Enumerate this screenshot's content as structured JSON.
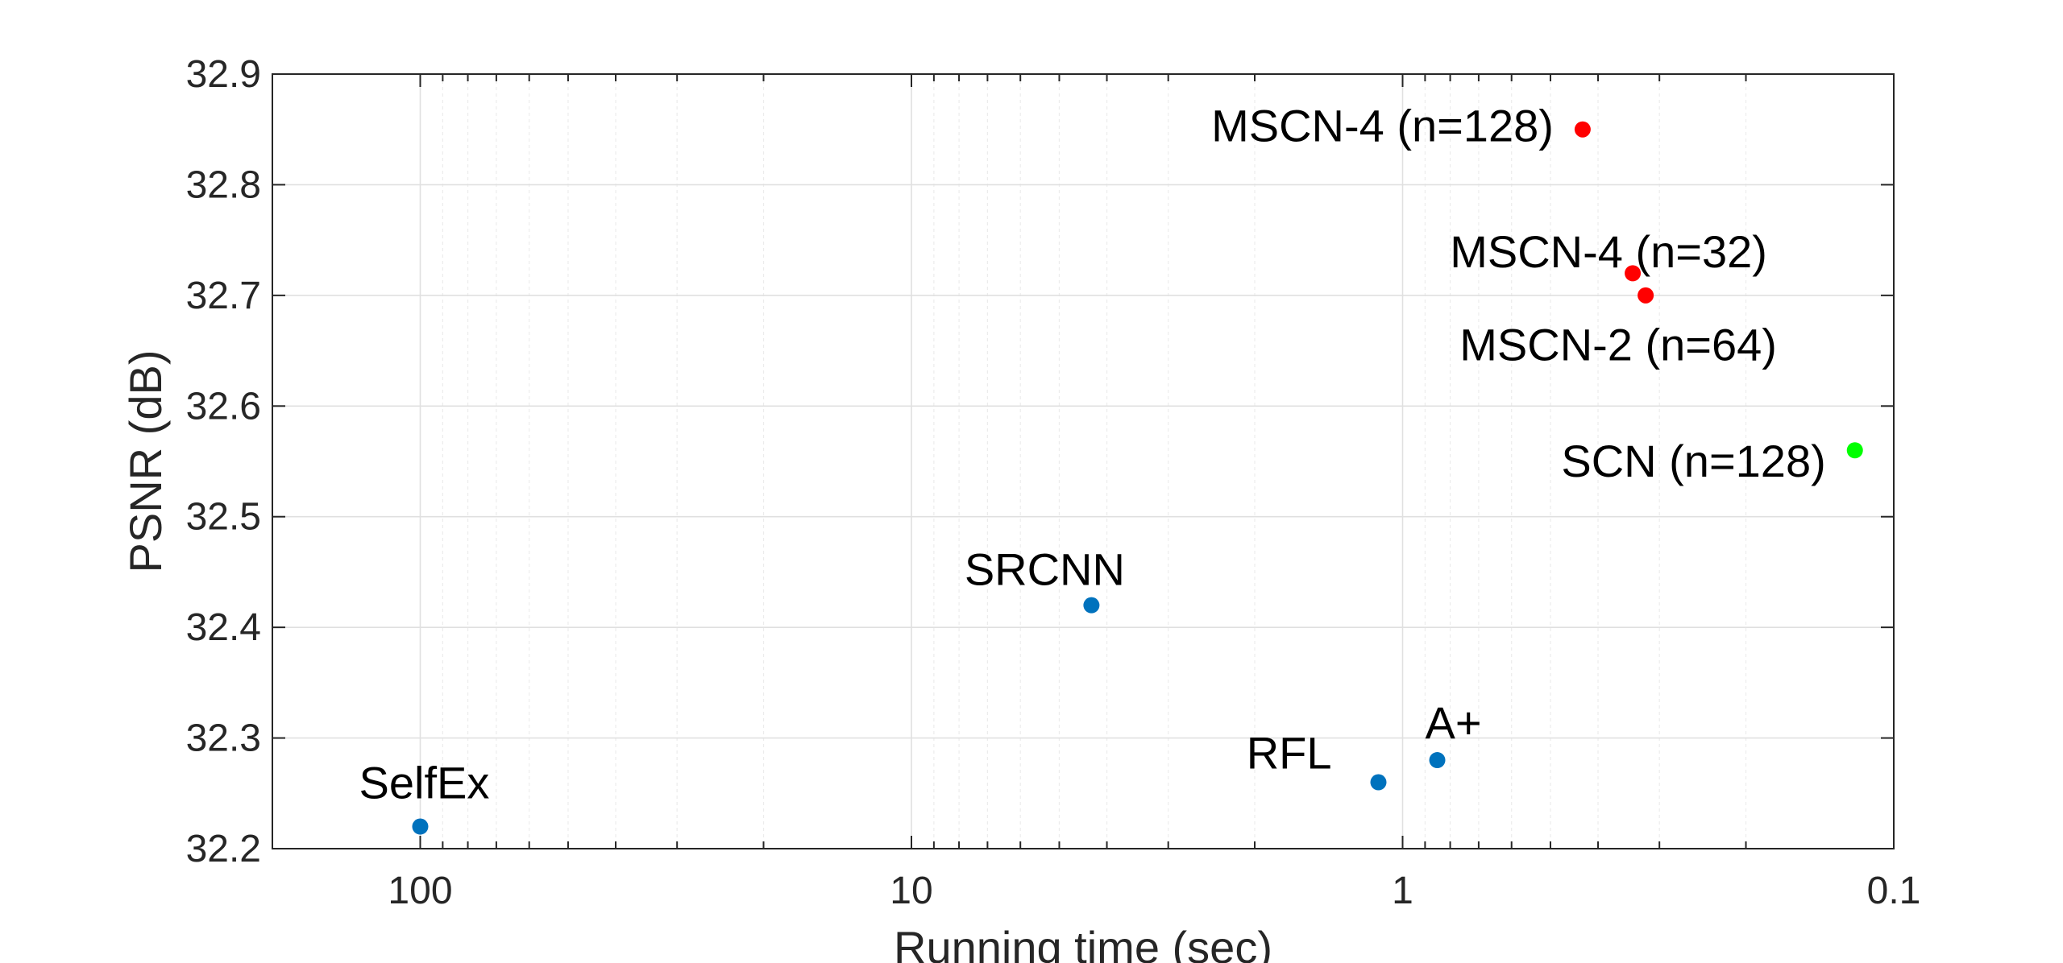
{
  "chart_data": {
    "type": "scatter",
    "title": "",
    "xlabel": "Running time (sec)",
    "ylabel": "PSNR (dB)",
    "x_scale": "log",
    "x_reversed": true,
    "xlim": [
      200,
      0.1
    ],
    "ylim": [
      32.2,
      32.9
    ],
    "x_ticks": [
      100,
      10,
      1,
      0.1
    ],
    "x_tick_labels": [
      "100",
      "10",
      "1",
      "0.1"
    ],
    "y_ticks": [
      32.2,
      32.3,
      32.4,
      32.5,
      32.6,
      32.7,
      32.8,
      32.9
    ],
    "y_tick_labels": [
      "32.2",
      "32.3",
      "32.4",
      "32.5",
      "32.6",
      "32.7",
      "32.8",
      "32.9"
    ],
    "grid": true,
    "legend": "none",
    "colors": {
      "baseline": "#0072bd",
      "mscn": "#ff0000",
      "scn": "#00ff00"
    },
    "points": [
      {
        "label": "SelfEx",
        "x": 100,
        "y": 32.22,
        "group": "baseline"
      },
      {
        "label": "SRCNN",
        "x": 4.3,
        "y": 32.42,
        "group": "baseline"
      },
      {
        "label": "RFL",
        "x": 1.12,
        "y": 32.26,
        "group": "baseline"
      },
      {
        "label": "A+",
        "x": 0.85,
        "y": 32.28,
        "group": "baseline"
      },
      {
        "label": "MSCN-4 (n=128)",
        "x": 0.43,
        "y": 32.85,
        "group": "mscn"
      },
      {
        "label": "MSCN-4 (n=32)",
        "x": 0.34,
        "y": 32.72,
        "group": "mscn"
      },
      {
        "label": "MSCN-2 (n=64)",
        "x": 0.32,
        "y": 32.7,
        "group": "mscn"
      },
      {
        "label": "SCN (n=128)",
        "x": 0.12,
        "y": 32.56,
        "group": "scn"
      }
    ]
  }
}
